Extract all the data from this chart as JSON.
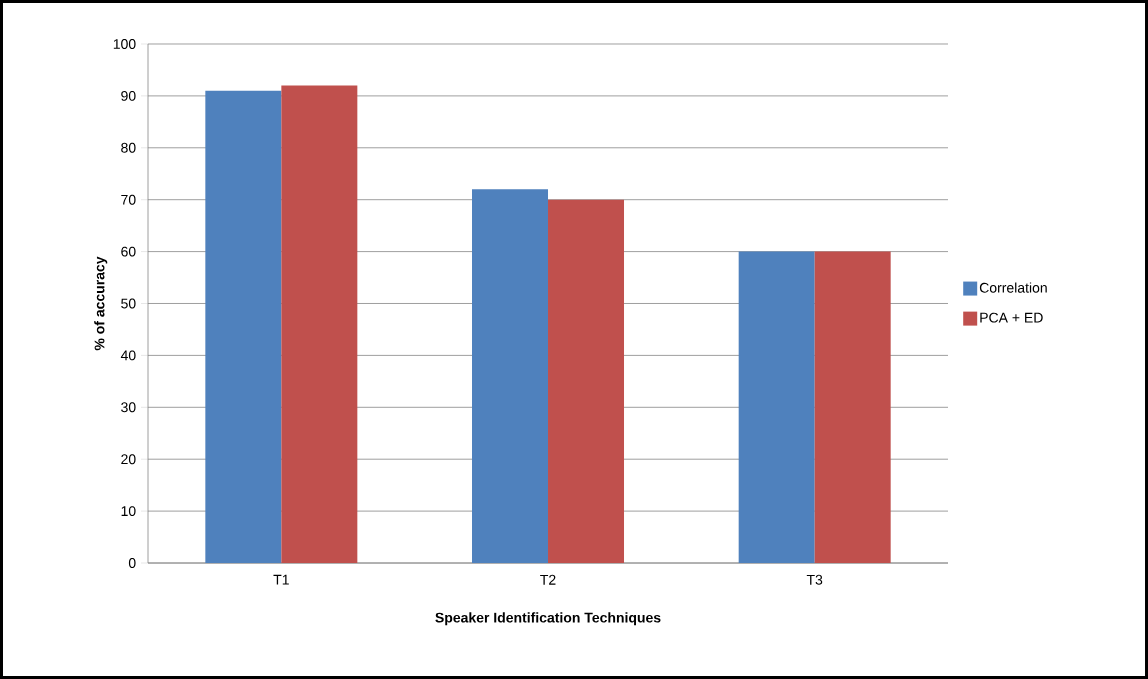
{
  "chart_data": {
    "type": "bar",
    "xlabel": "Speaker Identification Techniques",
    "ylabel": "% of accuracy",
    "categories": [
      "T1",
      "T2",
      "T3"
    ],
    "series": [
      {
        "name": "Correlation",
        "color": "#4f81bd",
        "values": [
          91,
          72,
          60
        ]
      },
      {
        "name": "PCA + ED",
        "color": "#c0504d",
        "values": [
          92,
          70,
          60
        ]
      }
    ],
    "ylim": [
      0,
      100
    ],
    "yticks": [
      0,
      10,
      20,
      30,
      40,
      50,
      60,
      70,
      80,
      90,
      100
    ],
    "grid": "y",
    "legend": "right"
  }
}
